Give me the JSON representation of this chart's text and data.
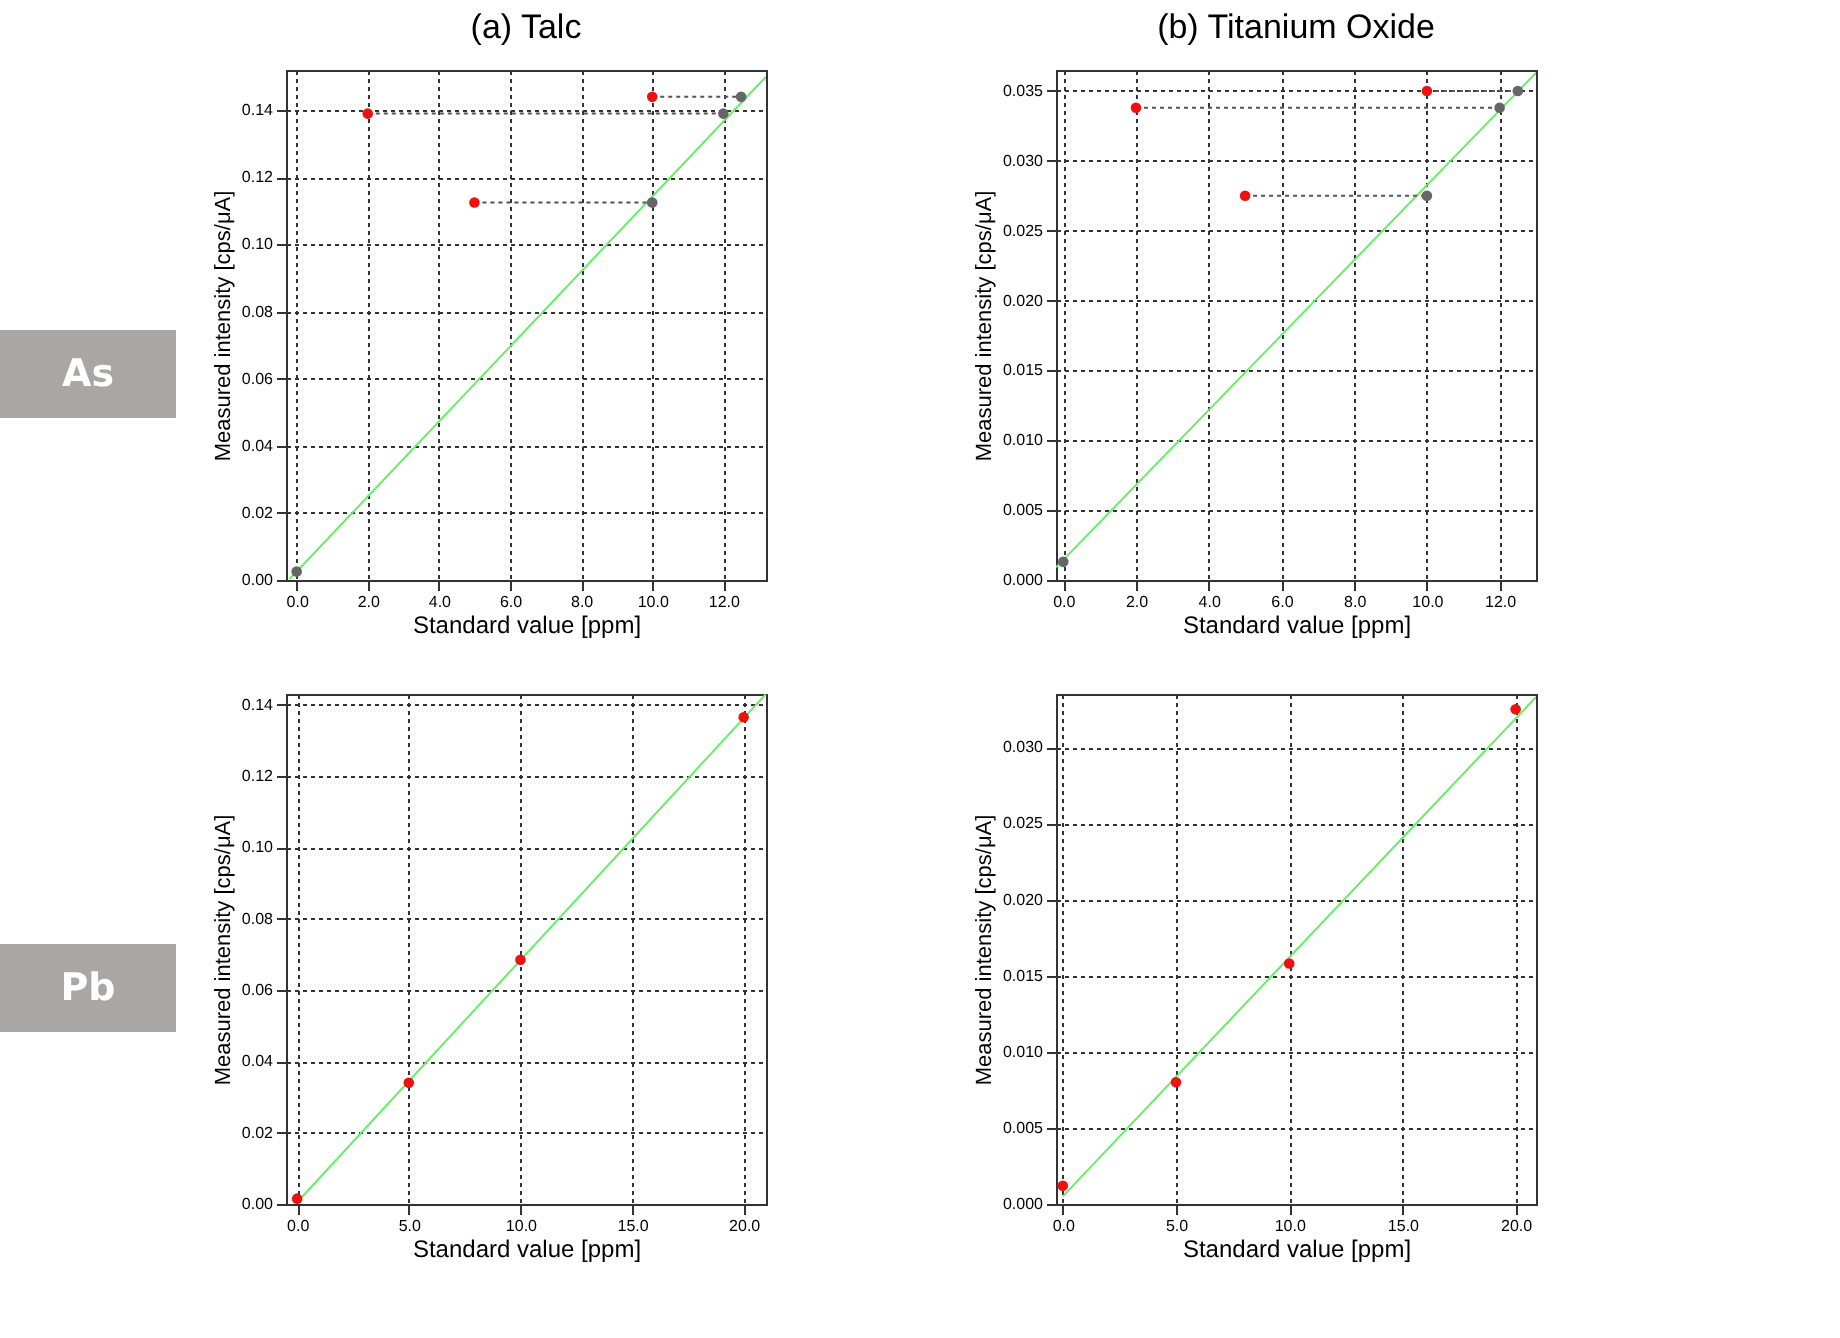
{
  "chart_data": [
    {
      "type": "scatter",
      "title": "(a) Talc",
      "xlabel": "Standard value [ppm]",
      "ylabel": "Measured intensity [cps/μA]",
      "annotations": [
        "As"
      ],
      "grid": true,
      "marker": "circle",
      "xlim": [
        -0.3,
        13.2
      ],
      "xticks": [
        {
          "value": 0,
          "label": "0.0"
        },
        {
          "value": 2,
          "label": "2.0"
        },
        {
          "value": 4,
          "label": "4.0"
        },
        {
          "value": 6,
          "label": "6.0"
        },
        {
          "value": 8,
          "label": "8.0"
        },
        {
          "value": 10,
          "label": "10.0"
        },
        {
          "value": 12,
          "label": "12.0"
        }
      ],
      "ylim": [
        0,
        0.152
      ],
      "yticks": [
        {
          "value": 0,
          "label": "0.00"
        },
        {
          "value": 0.02,
          "label": "0.02"
        },
        {
          "value": 0.04,
          "label": "0.04"
        },
        {
          "value": 0.06,
          "label": "0.06"
        },
        {
          "value": 0.08,
          "label": "0.08"
        },
        {
          "value": 0.1,
          "label": "0.10"
        },
        {
          "value": 0.12,
          "label": "0.12"
        },
        {
          "value": 0.14,
          "label": "0.14"
        }
      ],
      "series": [
        {
          "type": "line",
          "marker": "none",
          "color": "#66ee66",
          "line_style": "solid",
          "x": [
            -0.2,
            13.2
          ],
          "values": [
            0.0003,
            0.15
          ]
        },
        {
          "type": "line",
          "marker": "none",
          "color": "#555555",
          "line_style": "dotted",
          "x": [
            2,
            12
          ],
          "values": [
            0.139,
            0.139
          ]
        },
        {
          "type": "line",
          "marker": "none",
          "color": "#555555",
          "line_style": "dotted",
          "x": [
            5,
            10
          ],
          "values": [
            0.1125,
            0.1125
          ]
        },
        {
          "type": "line",
          "marker": "none",
          "color": "#555555",
          "line_style": "dotted",
          "x": [
            10,
            12.5
          ],
          "values": [
            0.144,
            0.144
          ]
        },
        {
          "color": "#666666",
          "x": [
            0,
            10,
            12,
            12.5
          ],
          "values": [
            0.0025,
            0.1125,
            0.139,
            0.144
          ]
        },
        {
          "color": "#ee1111",
          "x": [
            2,
            5,
            10
          ],
          "values": [
            0.139,
            0.1125,
            0.144
          ]
        }
      ]
    },
    {
      "type": "scatter",
      "title": "(b) Titanium Oxide",
      "xlabel": "Standard value [ppm]",
      "ylabel": "Measured intensity [cps/μA]",
      "grid": true,
      "marker": "circle",
      "xlim": [
        -0.2,
        13
      ],
      "xticks": [
        {
          "value": 0,
          "label": "0.0"
        },
        {
          "value": 2,
          "label": "2.0"
        },
        {
          "value": 4,
          "label": "4.0"
        },
        {
          "value": 6,
          "label": "6.0"
        },
        {
          "value": 8,
          "label": "8.0"
        },
        {
          "value": 10,
          "label": "10.0"
        },
        {
          "value": 12,
          "label": "12.0"
        }
      ],
      "ylim": [
        0,
        0.0365
      ],
      "yticks": [
        {
          "value": 0,
          "label": "0.000"
        },
        {
          "value": 0.005,
          "label": "0.005"
        },
        {
          "value": 0.01,
          "label": "0.010"
        },
        {
          "value": 0.015,
          "label": "0.015"
        },
        {
          "value": 0.02,
          "label": "0.020"
        },
        {
          "value": 0.025,
          "label": "0.025"
        },
        {
          "value": 0.03,
          "label": "0.030"
        },
        {
          "value": 0.035,
          "label": "0.035"
        }
      ],
      "series": [
        {
          "type": "line",
          "marker": "none",
          "color": "#66ee66",
          "line_style": "solid",
          "x": [
            -0.2,
            13
          ],
          "values": [
            0.0009,
            0.0363
          ]
        },
        {
          "type": "line",
          "marker": "none",
          "color": "#555555",
          "line_style": "dotted",
          "x": [
            2,
            12
          ],
          "values": [
            0.0338,
            0.0338
          ]
        },
        {
          "type": "line",
          "marker": "none",
          "color": "#555555",
          "line_style": "dotted",
          "x": [
            5,
            10
          ],
          "values": [
            0.0275,
            0.0275
          ]
        },
        {
          "type": "line",
          "marker": "none",
          "color": "#555555",
          "line_style": "dotted",
          "x": [
            10,
            12.5
          ],
          "values": [
            0.035,
            0.035
          ]
        },
        {
          "color": "#666666",
          "x": [
            0,
            10,
            12,
            12.5
          ],
          "values": [
            0.0013,
            0.0275,
            0.0338,
            0.035
          ]
        },
        {
          "color": "#ee1111",
          "x": [
            2,
            5,
            10
          ],
          "values": [
            0.0338,
            0.0275,
            0.035
          ]
        }
      ]
    },
    {
      "type": "scatter",
      "xlabel": "Standard value [ppm]",
      "ylabel": "Measured intensity [cps/μA]",
      "annotations": [
        "Pb"
      ],
      "grid": true,
      "marker": "circle",
      "xlim": [
        -0.5,
        21
      ],
      "xticks": [
        {
          "value": 0,
          "label": "0.0"
        },
        {
          "value": 5,
          "label": "5.0"
        },
        {
          "value": 10,
          "label": "10.0"
        },
        {
          "value": 15,
          "label": "15.0"
        },
        {
          "value": 20,
          "label": "20.0"
        }
      ],
      "ylim": [
        0,
        0.143
      ],
      "yticks": [
        {
          "value": 0,
          "label": "0.00"
        },
        {
          "value": 0.02,
          "label": "0.02"
        },
        {
          "value": 0.04,
          "label": "0.04"
        },
        {
          "value": 0.06,
          "label": "0.06"
        },
        {
          "value": 0.08,
          "label": "0.08"
        },
        {
          "value": 0.1,
          "label": "0.10"
        },
        {
          "value": 0.12,
          "label": "0.12"
        },
        {
          "value": 0.14,
          "label": "0.14"
        }
      ],
      "series": [
        {
          "type": "line",
          "marker": "none",
          "color": "#66ee66",
          "line_style": "solid",
          "x": [
            0,
            21
          ],
          "values": [
            0.0005,
            0.143
          ]
        },
        {
          "color": "#ee1111",
          "x": [
            0,
            5,
            10,
            20
          ],
          "values": [
            0.0015,
            0.034,
            0.0685,
            0.1365
          ]
        }
      ]
    },
    {
      "type": "scatter",
      "xlabel": "Standard value [ppm]",
      "ylabel": "Measured intensity [cps/μA]",
      "grid": true,
      "marker": "circle",
      "xlim": [
        -0.3,
        20.9
      ],
      "xticks": [
        {
          "value": 0,
          "label": "0.0"
        },
        {
          "value": 5,
          "label": "5.0"
        },
        {
          "value": 10,
          "label": "10.0"
        },
        {
          "value": 15,
          "label": "15.0"
        },
        {
          "value": 20,
          "label": "20.0"
        }
      ],
      "ylim": [
        0,
        0.0335
      ],
      "yticks": [
        {
          "value": 0,
          "label": "0.000"
        },
        {
          "value": 0.005,
          "label": "0.005"
        },
        {
          "value": 0.01,
          "label": "0.010"
        },
        {
          "value": 0.015,
          "label": "0.015"
        },
        {
          "value": 0.02,
          "label": "0.020"
        },
        {
          "value": 0.025,
          "label": "0.025"
        },
        {
          "value": 0.03,
          "label": "0.030"
        }
      ],
      "series": [
        {
          "type": "line",
          "marker": "none",
          "color": "#66ee66",
          "line_style": "solid",
          "x": [
            0,
            20.9
          ],
          "values": [
            0.0005,
            0.0333
          ]
        },
        {
          "color": "#ee1111",
          "x": [
            0,
            5,
            10,
            20
          ],
          "values": [
            0.0012,
            0.008,
            0.0158,
            0.0325
          ]
        }
      ]
    }
  ]
}
